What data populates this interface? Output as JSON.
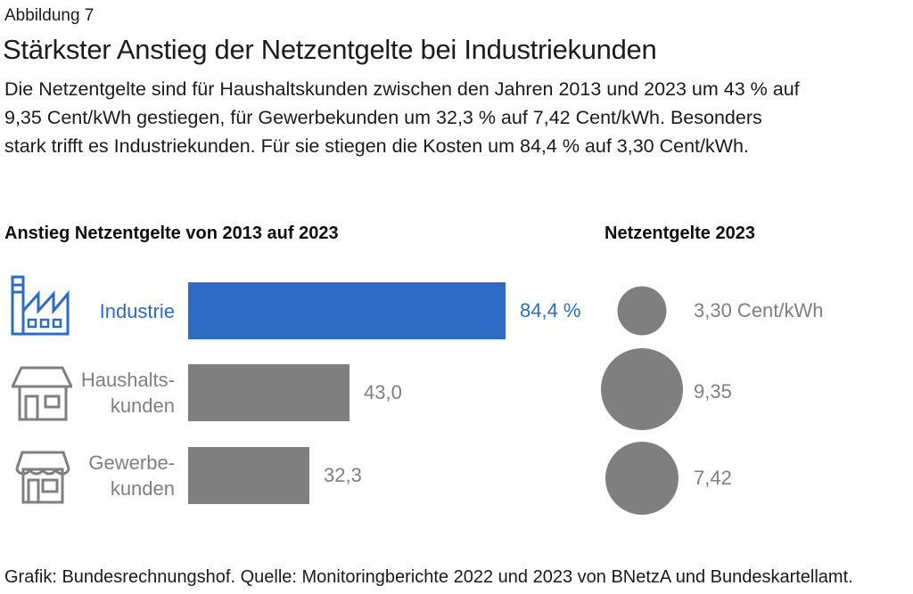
{
  "page": {
    "figure_label": "Abbildung 7",
    "title": "Stärkster Anstieg der Netzentgelte bei Industriekunden",
    "subtitle_lines": [
      "Die Netzentgelte sind für Haushaltskunden zwischen den Jahren 2013 und 2023 um 43 % auf",
      "9,35 Cent/kWh gestiegen, für Gewerbekunden um 32,3 % auf 7,42 Cent/kWh. Besonders",
      "stark trifft es Industriekunden. Für sie stiegen die Kosten um 84,4 % auf 3,30 Cent/kWh."
    ],
    "footer": "Grafik: Bundesrechnungshof. Quelle: Monitoringberichte 2022 und 2023 von BNetzA und Bundeskartellamt."
  },
  "colors": {
    "accent_blue": "#2e6bc4",
    "gray": "#7f7f7f",
    "text_dark": "#1a1a1a"
  },
  "chart_data": [
    {
      "type": "bar",
      "title": "Anstieg Netzentgelte von 2013 auf 2023",
      "orientation": "horizontal",
      "categories": [
        "Industrie",
        "Haushaltskunden",
        "Gewerbekunden"
      ],
      "category_label_lines": [
        [
          "Industrie"
        ],
        [
          "Haushalts-",
          "kunden"
        ],
        [
          "Gewerbe-",
          "kunden"
        ]
      ],
      "values": [
        84.4,
        43.0,
        32.3
      ],
      "value_labels": [
        "84,4 %",
        "43,0",
        "32,3"
      ],
      "bar_colors": [
        "#2e6bc4",
        "#7f7f7f",
        "#7f7f7f"
      ],
      "icons": [
        "factory-icon",
        "house-icon",
        "shop-icon"
      ],
      "xlim": [
        0,
        90
      ],
      "grid": false,
      "axis_labels": "none"
    },
    {
      "type": "bubble",
      "title": "Netzentgelte 2023",
      "categories": [
        "Industrie",
        "Haushaltskunden",
        "Gewerbekunden"
      ],
      "values": [
        3.3,
        9.35,
        7.42
      ],
      "value_labels": [
        "3,30 Cent/kWh",
        "9,35",
        "7,42"
      ],
      "bubble_color": "#7f7f7f",
      "sizing": "area-proportional"
    }
  ]
}
